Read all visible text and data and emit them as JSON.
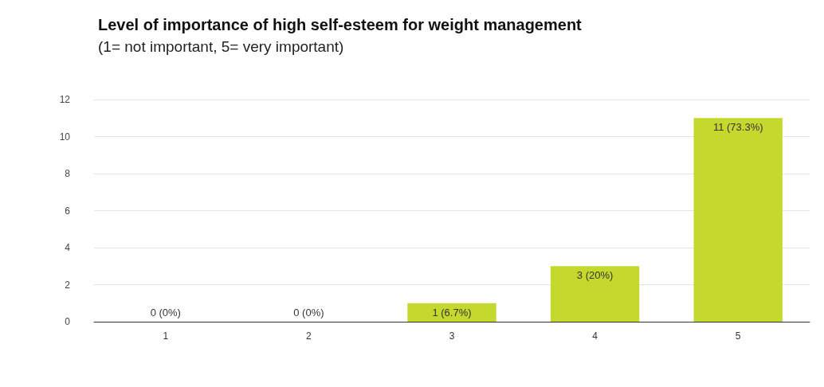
{
  "chart_data": {
    "type": "bar",
    "title": "Level of importance of high self-esteem for weight management",
    "subtitle": "(1= not important, 5= very important)",
    "categories": [
      "1",
      "2",
      "3",
      "4",
      "5"
    ],
    "values": [
      0,
      0,
      1,
      3,
      11
    ],
    "value_labels": [
      "0 (0%)",
      "0 (0%)",
      "1 (6.7%)",
      "3 (20%)",
      "11 (73.3%)"
    ],
    "color": "#c5d82e",
    "ylim": [
      0,
      12
    ],
    "yticks": [
      0,
      2,
      4,
      6,
      8,
      10,
      12
    ],
    "grid": "y"
  }
}
